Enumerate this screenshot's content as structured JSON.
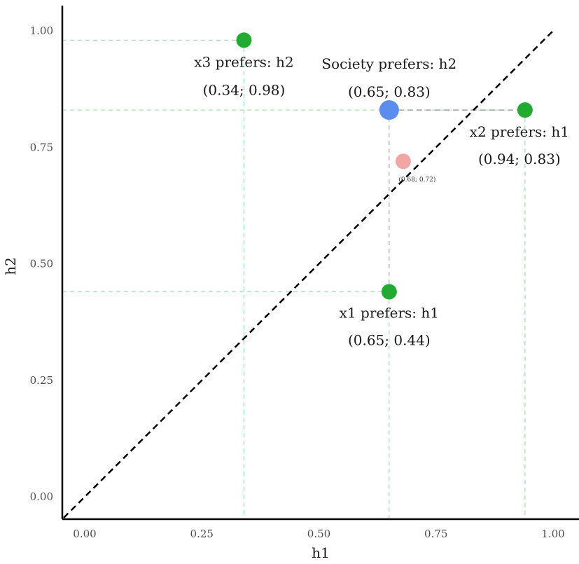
{
  "chart_data": {
    "type": "scatter",
    "xlabel": "h1",
    "ylabel": "h2",
    "xlim": [
      -0.05,
      1.05
    ],
    "ylim": [
      -0.05,
      1.05
    ],
    "x_ticks": [
      "0.00",
      "0.25",
      "0.50",
      "0.75",
      "1.00"
    ],
    "y_ticks": [
      "0.00",
      "0.25",
      "0.50",
      "0.75",
      "1.00"
    ],
    "grid": false,
    "diagonal": {
      "x": [
        0,
        1
      ],
      "y": [
        0,
        1
      ],
      "style": "dashed",
      "color": "#000000"
    },
    "points": [
      {
        "x": 0.65,
        "y": 0.44,
        "color": "#22aa33",
        "label": "x1 prefers: h1",
        "coord": "(0.65; 0.44)"
      },
      {
        "x": 0.94,
        "y": 0.83,
        "color": "#22aa33",
        "label": "x2 prefers: h1",
        "coord": "(0.94; 0.83)"
      },
      {
        "x": 0.34,
        "y": 0.98,
        "color": "#22aa33",
        "label": "x3 prefers: h2",
        "coord": "(0.34; 0.98)"
      },
      {
        "x": 0.65,
        "y": 0.83,
        "color": "#5b8def",
        "label": "Society prefers: h2",
        "coord": "(0.65; 0.83)"
      },
      {
        "x": 0.68,
        "y": 0.72,
        "color": "#f2a5a5",
        "label": "",
        "coord": "(0.68; 0.72)"
      }
    ]
  }
}
